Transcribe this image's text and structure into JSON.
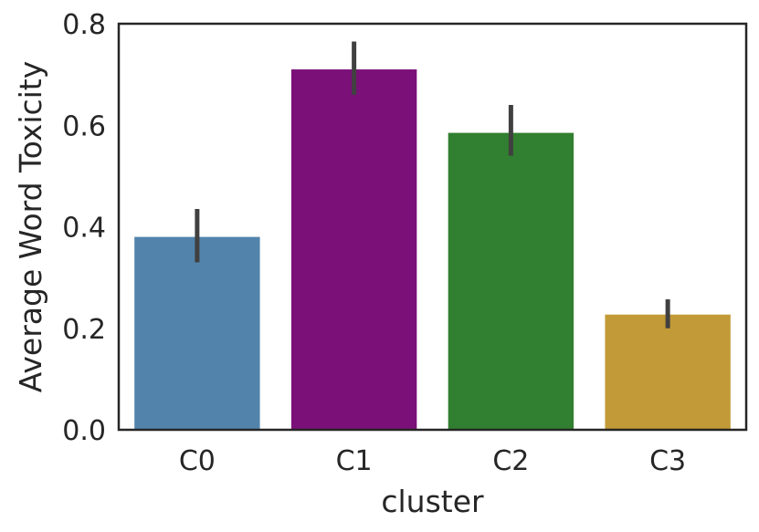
{
  "chart_data": {
    "type": "bar",
    "categories": [
      "C0",
      "C1",
      "C2",
      "C3"
    ],
    "values": [
      0.38,
      0.71,
      0.585,
      0.227
    ],
    "error_low": [
      0.33,
      0.66,
      0.54,
      0.2
    ],
    "error_high": [
      0.435,
      0.765,
      0.64,
      0.257
    ],
    "colors": [
      "#5284ab",
      "#7a1078",
      "#317f30",
      "#c29a37"
    ],
    "error_color": "#404040",
    "xlabel": "cluster",
    "ylabel": "Average Word Toxicity",
    "ylim": [
      0,
      0.8
    ],
    "yticks": [
      0.0,
      0.2,
      0.4,
      0.6,
      0.8
    ],
    "ytick_labels": [
      "0.0",
      "0.2",
      "0.4",
      "0.6",
      "0.8"
    ],
    "grid": false,
    "legend": "none"
  }
}
